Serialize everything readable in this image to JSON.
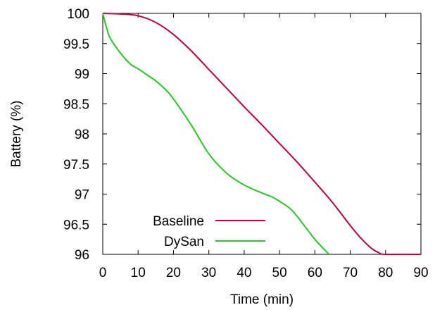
{
  "chart_data": {
    "type": "line",
    "title": "",
    "xlabel": "Time (min)",
    "ylabel": "Battery (%)",
    "xlim": [
      0,
      90
    ],
    "ylim": [
      96,
      100
    ],
    "x_ticks": [
      0,
      10,
      20,
      30,
      40,
      50,
      60,
      70,
      80,
      90
    ],
    "y_ticks": [
      96,
      96.5,
      97,
      97.5,
      98,
      98.5,
      99,
      99.5,
      100
    ],
    "y_tick_labels": [
      "96",
      "96.5",
      "97",
      "97.5",
      "98",
      "98.5",
      "99",
      "99.5",
      "100"
    ],
    "grid": false,
    "legend_position": "bottom-left",
    "series": [
      {
        "name": "Baseline",
        "color": "#c8003c",
        "points": [
          [
            0,
            100
          ],
          [
            5,
            99.99
          ],
          [
            10,
            99.96
          ],
          [
            15,
            99.85
          ],
          [
            20,
            99.65
          ],
          [
            25,
            99.38
          ],
          [
            30,
            99.07
          ],
          [
            35,
            98.76
          ],
          [
            40,
            98.45
          ],
          [
            45,
            98.15
          ],
          [
            50,
            97.84
          ],
          [
            55,
            97.53
          ],
          [
            60,
            97.2
          ],
          [
            65,
            96.86
          ],
          [
            70,
            96.48
          ],
          [
            73,
            96.27
          ],
          [
            76,
            96.1
          ],
          [
            78,
            96.03
          ],
          [
            80,
            96.0
          ],
          [
            90,
            96.0
          ]
        ]
      },
      {
        "name": "DySan",
        "color": "#22cc22",
        "points": [
          [
            0,
            100
          ],
          [
            1,
            99.78
          ],
          [
            2,
            99.6
          ],
          [
            4,
            99.42
          ],
          [
            6,
            99.27
          ],
          [
            8,
            99.15
          ],
          [
            10,
            99.08
          ],
          [
            12,
            99.0
          ],
          [
            15,
            98.88
          ],
          [
            18,
            98.72
          ],
          [
            20,
            98.58
          ],
          [
            25,
            98.15
          ],
          [
            30,
            97.67
          ],
          [
            35,
            97.35
          ],
          [
            40,
            97.15
          ],
          [
            45,
            97.02
          ],
          [
            48,
            96.95
          ],
          [
            50,
            96.88
          ],
          [
            53,
            96.76
          ],
          [
            55,
            96.63
          ],
          [
            58,
            96.4
          ],
          [
            60,
            96.25
          ],
          [
            62,
            96.12
          ],
          [
            64,
            96.0
          ]
        ]
      }
    ]
  }
}
